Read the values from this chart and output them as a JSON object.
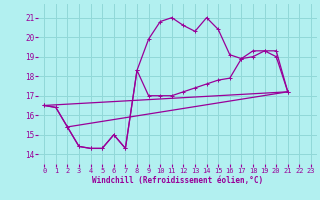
{
  "xlabel": "Windchill (Refroidissement éolien,°C)",
  "bg_color": "#b2f0f0",
  "grid_color": "#90d8d8",
  "line_color": "#990099",
  "xlim": [
    -0.5,
    23.5
  ],
  "ylim": [
    13.5,
    21.7
  ],
  "xticks": [
    0,
    1,
    2,
    3,
    4,
    5,
    6,
    7,
    8,
    9,
    10,
    11,
    12,
    13,
    14,
    15,
    16,
    17,
    18,
    19,
    20,
    21,
    22,
    23
  ],
  "yticks": [
    14,
    15,
    16,
    17,
    18,
    19,
    20,
    21
  ],
  "curve1_x": [
    0,
    1,
    2,
    3,
    4,
    5,
    6,
    7,
    8,
    9,
    10,
    11,
    12,
    13,
    14,
    15,
    16,
    17,
    18,
    19,
    20,
    21,
    22,
    23
  ],
  "curve1_y": [
    16.5,
    16.4,
    15.4,
    14.4,
    14.3,
    14.3,
    15.0,
    14.3,
    18.3,
    19.9,
    20.8,
    21.0,
    20.6,
    20.3,
    21.0,
    20.4,
    19.1,
    18.9,
    19.3,
    19.3,
    19.0,
    17.2,
    null,
    null
  ],
  "curve2_x": [
    0,
    1,
    2,
    3,
    4,
    5,
    6,
    7,
    8,
    9,
    10,
    11,
    12,
    13,
    14,
    15,
    16,
    17,
    18,
    19,
    20,
    21,
    22,
    23
  ],
  "curve2_y": [
    16.5,
    16.4,
    15.4,
    14.4,
    14.3,
    14.3,
    15.0,
    14.3,
    18.3,
    17.0,
    17.0,
    17.0,
    17.2,
    17.4,
    17.6,
    17.8,
    17.9,
    18.9,
    19.0,
    19.3,
    19.3,
    17.2,
    null,
    null
  ],
  "line1_x": [
    0,
    21
  ],
  "line1_y": [
    16.5,
    17.2
  ],
  "line2_x": [
    2,
    21
  ],
  "line2_y": [
    15.4,
    17.2
  ]
}
